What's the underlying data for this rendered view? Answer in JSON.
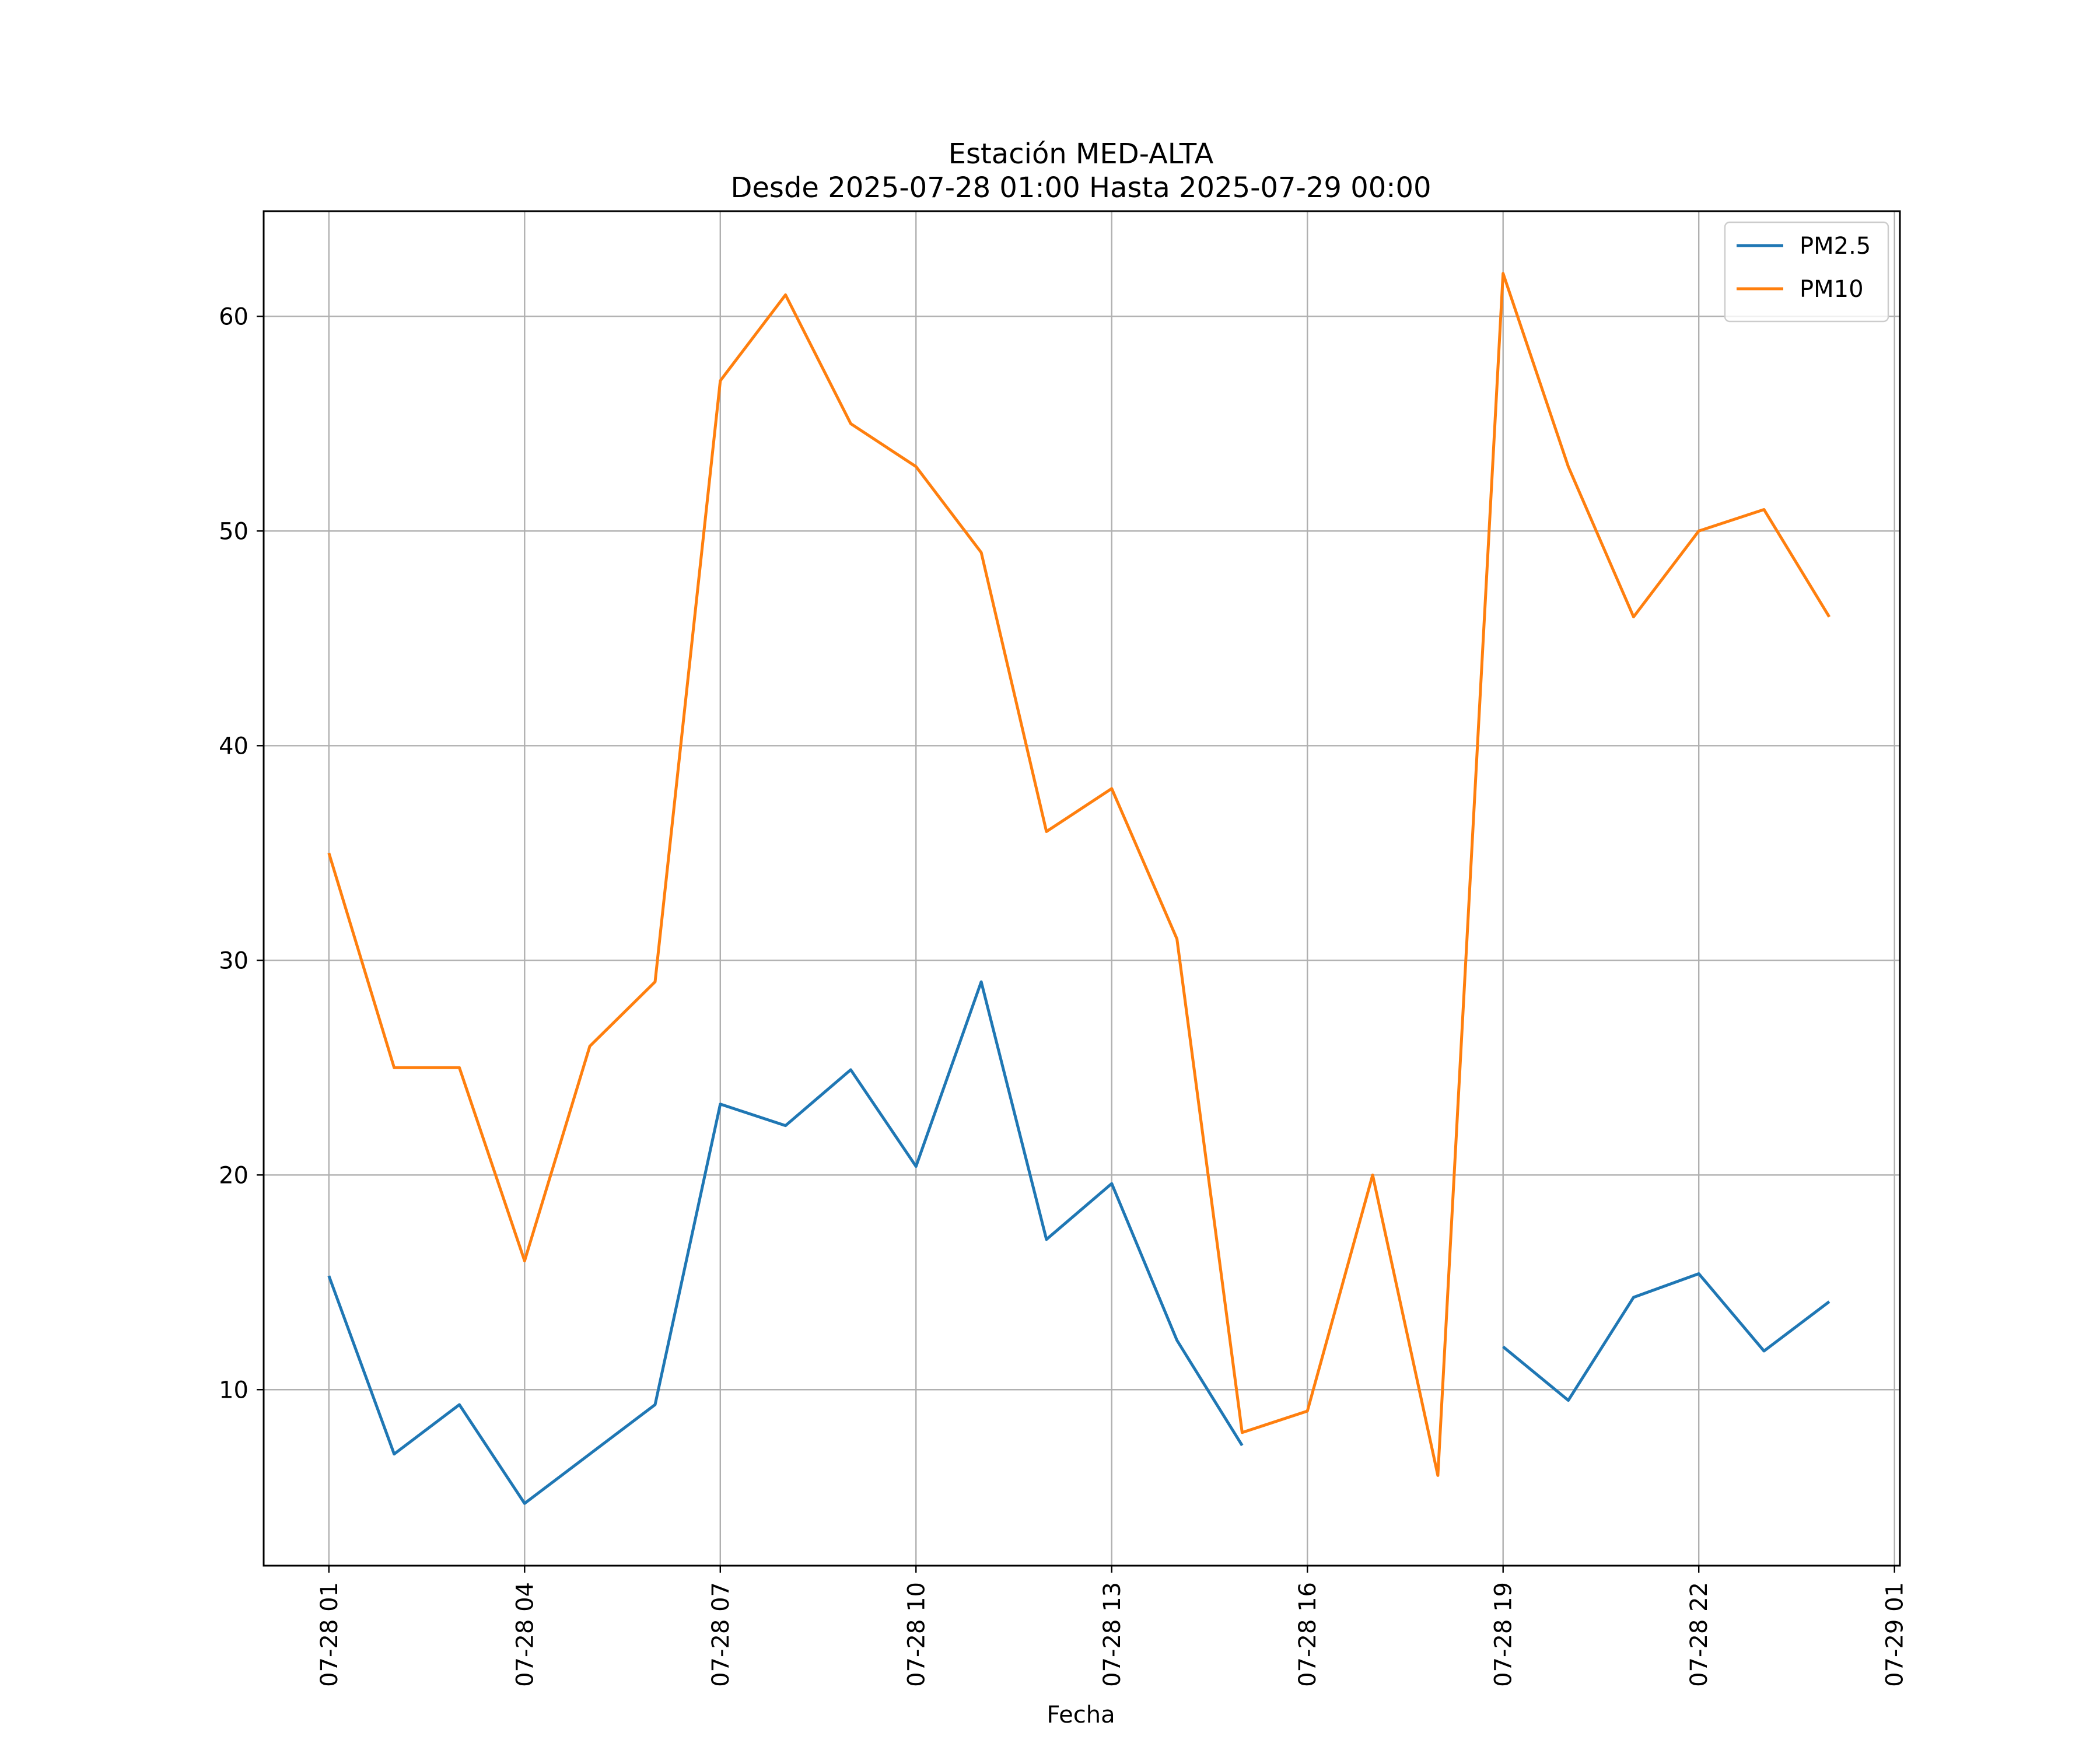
{
  "chart_data": {
    "type": "line",
    "title": "Estación MED-ALTA",
    "subtitle": "Desde 2025-07-28 01:00 Hasta 2025-07-29 00:00",
    "xlabel": "Fecha",
    "ylabel": "",
    "x": [
      "2025-07-28 01:00",
      "2025-07-28 02:00",
      "2025-07-28 03:00",
      "2025-07-28 04:00",
      "2025-07-28 05:00",
      "2025-07-28 06:00",
      "2025-07-28 07:00",
      "2025-07-28 08:00",
      "2025-07-28 09:00",
      "2025-07-28 10:00",
      "2025-07-28 11:00",
      "2025-07-28 12:00",
      "2025-07-28 13:00",
      "2025-07-28 14:00",
      "2025-07-28 15:00",
      "2025-07-28 16:00",
      "2025-07-28 17:00",
      "2025-07-28 18:00",
      "2025-07-28 19:00",
      "2025-07-28 20:00",
      "2025-07-28 21:00",
      "2025-07-28 22:00",
      "2025-07-28 23:00",
      "2025-07-29 00:00"
    ],
    "xlim": [
      "2025-07-28 00:00",
      "2025-07-29 01:05"
    ],
    "ylim": [
      1.8,
      64.9
    ],
    "xticks": [
      {
        "x": "2025-07-28 01:00",
        "label": "07-28 01"
      },
      {
        "x": "2025-07-28 04:00",
        "label": "07-28 04"
      },
      {
        "x": "2025-07-28 07:00",
        "label": "07-28 07"
      },
      {
        "x": "2025-07-28 10:00",
        "label": "07-28 10"
      },
      {
        "x": "2025-07-28 13:00",
        "label": "07-28 13"
      },
      {
        "x": "2025-07-28 16:00",
        "label": "07-28 16"
      },
      {
        "x": "2025-07-28 19:00",
        "label": "07-28 19"
      },
      {
        "x": "2025-07-28 22:00",
        "label": "07-28 22"
      },
      {
        "x": "2025-07-29 01:00",
        "label": "07-29 01"
      }
    ],
    "yticks": [
      10,
      20,
      30,
      40,
      50,
      60
    ],
    "grid": true,
    "legend_position": "top-right",
    "series": [
      {
        "name": "PM2.5",
        "color": "#1f77b4",
        "values": [
          15.3,
          7.0,
          9.3,
          4.7,
          7.0,
          9.3,
          23.3,
          22.3,
          24.9,
          20.4,
          29.0,
          17.0,
          19.6,
          12.3,
          7.4,
          null,
          null,
          null,
          12.0,
          9.5,
          14.3,
          15.4,
          11.8,
          14.1
        ]
      },
      {
        "name": "PM10",
        "color": "#ff7f0e",
        "values": [
          35,
          25,
          25,
          16,
          26,
          29,
          57,
          61,
          55,
          53,
          49,
          36,
          38,
          31,
          8,
          9,
          20,
          6,
          62,
          53,
          46,
          50,
          51,
          46
        ]
      }
    ]
  }
}
